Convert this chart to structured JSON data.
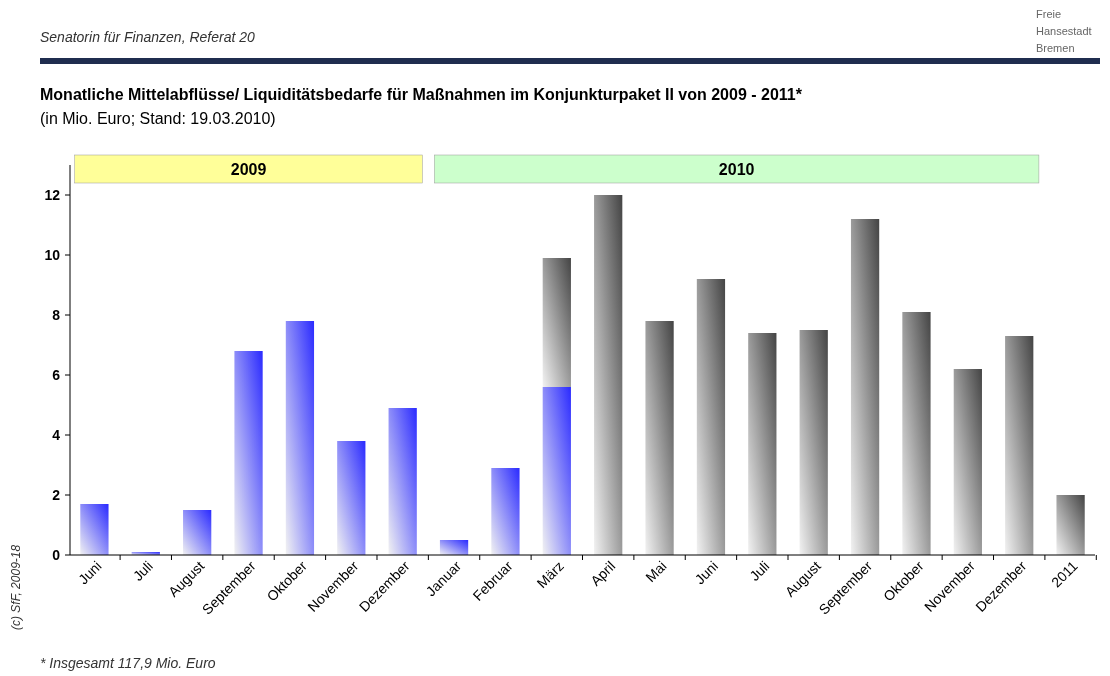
{
  "chart_data": {
    "type": "bar",
    "title": "Monatliche Mittelabflüsse/ Liquiditätsbedarfe für Maßnahmen im Konjunkturpaket II von 2009 - 2011*",
    "subtitle": "(in Mio. Euro; Stand: 19.03.2010)",
    "categories": [
      "Juni",
      "Juli",
      "August",
      "September",
      "Oktober",
      "November",
      "Dezember",
      "Januar",
      "Februar",
      "März",
      "April",
      "Mai",
      "Juni",
      "Juli",
      "August",
      "September",
      "Oktober",
      "November",
      "Dezember",
      "2011"
    ],
    "stacked": true,
    "series": [
      {
        "color": "#2a2aff",
        "values": [
          1.7,
          0.1,
          1.5,
          6.8,
          7.8,
          3.8,
          4.9,
          0.5,
          2.9,
          5.6,
          null,
          null,
          null,
          null,
          null,
          null,
          null,
          null,
          null,
          null
        ]
      },
      {
        "color": "#444444",
        "values": [
          null,
          null,
          null,
          null,
          null,
          null,
          null,
          null,
          null,
          4.3,
          12.0,
          7.8,
          9.2,
          7.4,
          7.5,
          11.2,
          8.1,
          6.2,
          7.3,
          2.0
        ]
      }
    ],
    "ylim": [
      0,
      13
    ],
    "yticks": [
      0,
      2,
      4,
      6,
      8,
      10,
      12
    ],
    "annotations": [
      "Senatorin für Finanzen, Referat 20",
      "Freie Hansestadt Bremen",
      "(c) SfF, 2009-18",
      "* Insgesamt 117,9 Mio. Euro",
      "2009",
      "2010"
    ]
  }
}
